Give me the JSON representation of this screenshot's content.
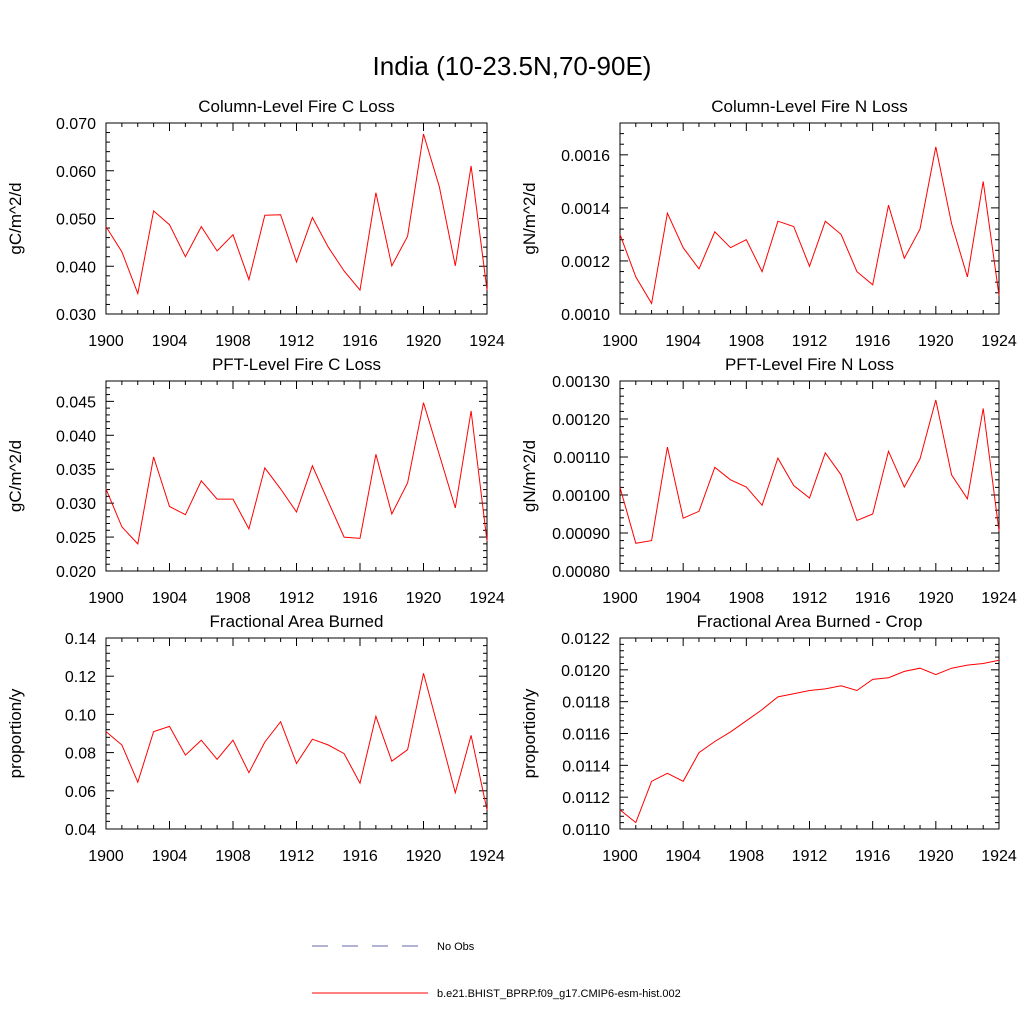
{
  "figure": {
    "title": "India (10-23.5N,70-90E)",
    "line_color": "#ff0000",
    "obs_color": "#6666aa"
  },
  "legend": {
    "entries": [
      {
        "label": "No Obs",
        "style": "dashed",
        "color": "#6666aa"
      },
      {
        "label": "b.e21.BHIST_BPRP.f09_g17.CMIP6-esm-hist.002",
        "style": "solid",
        "color": "#ff0000"
      }
    ]
  },
  "chart_data": [
    {
      "type": "line",
      "title": "Column-Level Fire C Loss",
      "ylabel": "gC/m^2/d",
      "xlim": [
        1900,
        1924
      ],
      "ylim": [
        0.03,
        0.07
      ],
      "xticks": [
        1900,
        1904,
        1908,
        1912,
        1916,
        1920,
        1924
      ],
      "yticks": [
        "0.030",
        "0.040",
        "0.050",
        "0.060",
        "0.070"
      ],
      "x": [
        1900,
        1901,
        1902,
        1903,
        1904,
        1905,
        1906,
        1907,
        1908,
        1909,
        1910,
        1911,
        1912,
        1913,
        1914,
        1915,
        1916,
        1917,
        1918,
        1919,
        1920,
        1921,
        1922,
        1923,
        1924
      ],
      "series": [
        {
          "values": [
            0.0483,
            0.043,
            0.0343,
            0.0516,
            0.0487,
            0.042,
            0.0483,
            0.0432,
            0.0466,
            0.0372,
            0.0507,
            0.0508,
            0.0409,
            0.0502,
            0.044,
            0.039,
            0.035,
            0.0554,
            0.0401,
            0.0463,
            0.0677,
            0.0566,
            0.0401,
            0.061,
            0.035
          ]
        }
      ]
    },
    {
      "type": "line",
      "title": "Column-Level Fire N Loss",
      "ylabel": "gN/m^2/d",
      "xlim": [
        1900,
        1924
      ],
      "ylim": [
        0.001,
        0.00172
      ],
      "xticks": [
        1900,
        1904,
        1908,
        1912,
        1916,
        1920,
        1924
      ],
      "yticks": [
        "0.0010",
        "0.0012",
        "0.0014",
        "0.0016"
      ],
      "x": [
        1900,
        1901,
        1902,
        1903,
        1904,
        1905,
        1906,
        1907,
        1908,
        1909,
        1910,
        1911,
        1912,
        1913,
        1914,
        1915,
        1916,
        1917,
        1918,
        1919,
        1920,
        1921,
        1922,
        1923,
        1924
      ],
      "series": [
        {
          "values": [
            0.0013,
            0.00114,
            0.00104,
            0.00138,
            0.00125,
            0.00117,
            0.00131,
            0.00125,
            0.00128,
            0.00116,
            0.00135,
            0.00133,
            0.00118,
            0.00135,
            0.0013,
            0.00116,
            0.00111,
            0.00141,
            0.00121,
            0.00132,
            0.00163,
            0.00134,
            0.00114,
            0.0015,
            0.00107
          ]
        }
      ]
    },
    {
      "type": "line",
      "title": "PFT-Level Fire C Loss",
      "ylabel": "gC/m^2/d",
      "xlim": [
        1900,
        1924
      ],
      "ylim": [
        0.02,
        0.048
      ],
      "xticks": [
        1900,
        1904,
        1908,
        1912,
        1916,
        1920,
        1924
      ],
      "yticks": [
        "0.020",
        "0.025",
        "0.030",
        "0.035",
        "0.040",
        "0.045"
      ],
      "x": [
        1900,
        1901,
        1902,
        1903,
        1904,
        1905,
        1906,
        1907,
        1908,
        1909,
        1910,
        1911,
        1912,
        1913,
        1914,
        1915,
        1916,
        1917,
        1918,
        1919,
        1920,
        1921,
        1922,
        1923,
        1924
      ],
      "series": [
        {
          "values": [
            0.0321,
            0.0265,
            0.024,
            0.0368,
            0.0295,
            0.0283,
            0.0333,
            0.0306,
            0.0306,
            0.0262,
            0.0352,
            0.0321,
            0.0287,
            0.0355,
            0.0302,
            0.025,
            0.0248,
            0.0372,
            0.0284,
            0.033,
            0.0448,
            0.0371,
            0.0293,
            0.0436,
            0.0244
          ]
        }
      ]
    },
    {
      "type": "line",
      "title": "PFT-Level Fire N Loss",
      "ylabel": "gN/m^2/d",
      "xlim": [
        1900,
        1924
      ],
      "ylim": [
        0.0008,
        0.0013
      ],
      "xticks": [
        1900,
        1904,
        1908,
        1912,
        1916,
        1920,
        1924
      ],
      "yticks": [
        "0.00080",
        "0.00090",
        "0.00100",
        "0.00110",
        "0.00120",
        "0.00130"
      ],
      "x": [
        1900,
        1901,
        1902,
        1903,
        1904,
        1905,
        1906,
        1907,
        1908,
        1909,
        1910,
        1911,
        1912,
        1913,
        1914,
        1915,
        1916,
        1917,
        1918,
        1919,
        1920,
        1921,
        1922,
        1923,
        1924
      ],
      "series": [
        {
          "values": [
            0.00102,
            0.000873,
            0.00088,
            0.001126,
            0.000939,
            0.000957,
            0.001073,
            0.00104,
            0.001021,
            0.000973,
            0.001097,
            0.001025,
            0.000992,
            0.001111,
            0.001053,
            0.000933,
            0.00095,
            0.001115,
            0.001021,
            0.001095,
            0.00125,
            0.001053,
            0.00099,
            0.001228,
            0.000905
          ]
        }
      ]
    },
    {
      "type": "line",
      "title": "Fractional Area Burned",
      "ylabel": "proportion/y",
      "xlim": [
        1900,
        1924
      ],
      "ylim": [
        0.04,
        0.14
      ],
      "xticks": [
        1900,
        1904,
        1908,
        1912,
        1916,
        1920,
        1924
      ],
      "yticks": [
        "0.04",
        "0.06",
        "0.08",
        "0.10",
        "0.12",
        "0.14"
      ],
      "x": [
        1900,
        1901,
        1902,
        1903,
        1904,
        1905,
        1906,
        1907,
        1908,
        1909,
        1910,
        1911,
        1912,
        1913,
        1914,
        1915,
        1916,
        1917,
        1918,
        1919,
        1920,
        1921,
        1922,
        1923,
        1924
      ],
      "series": [
        {
          "values": [
            0.091,
            0.084,
            0.0645,
            0.091,
            0.0937,
            0.0787,
            0.0865,
            0.0765,
            0.0865,
            0.0695,
            0.0855,
            0.0962,
            0.0743,
            0.087,
            0.084,
            0.0795,
            0.064,
            0.099,
            0.0755,
            0.0815,
            0.1215,
            0.0905,
            0.059,
            0.089,
            0.05
          ]
        }
      ]
    },
    {
      "type": "line",
      "title": "Fractional Area Burned - Crop",
      "ylabel": "proportion/y",
      "xlim": [
        1900,
        1924
      ],
      "ylim": [
        0.011,
        0.0122
      ],
      "xticks": [
        1900,
        1904,
        1908,
        1912,
        1916,
        1920,
        1924
      ],
      "yticks": [
        "0.0110",
        "0.0112",
        "0.0114",
        "0.0116",
        "0.0118",
        "0.0120",
        "0.0122"
      ],
      "x": [
        1900,
        1901,
        1902,
        1903,
        1904,
        1905,
        1906,
        1907,
        1908,
        1909,
        1910,
        1911,
        1912,
        1913,
        1914,
        1915,
        1916,
        1917,
        1918,
        1919,
        1920,
        1921,
        1922,
        1923,
        1924
      ],
      "series": [
        {
          "values": [
            0.01112,
            0.01104,
            0.0113,
            0.01135,
            0.0113,
            0.01148,
            0.01155,
            0.01161,
            0.01168,
            0.01175,
            0.01183,
            0.01185,
            0.01187,
            0.01188,
            0.0119,
            0.01187,
            0.01194,
            0.01195,
            0.01199,
            0.01201,
            0.01197,
            0.01201,
            0.01203,
            0.01204,
            0.01206
          ]
        }
      ]
    }
  ]
}
